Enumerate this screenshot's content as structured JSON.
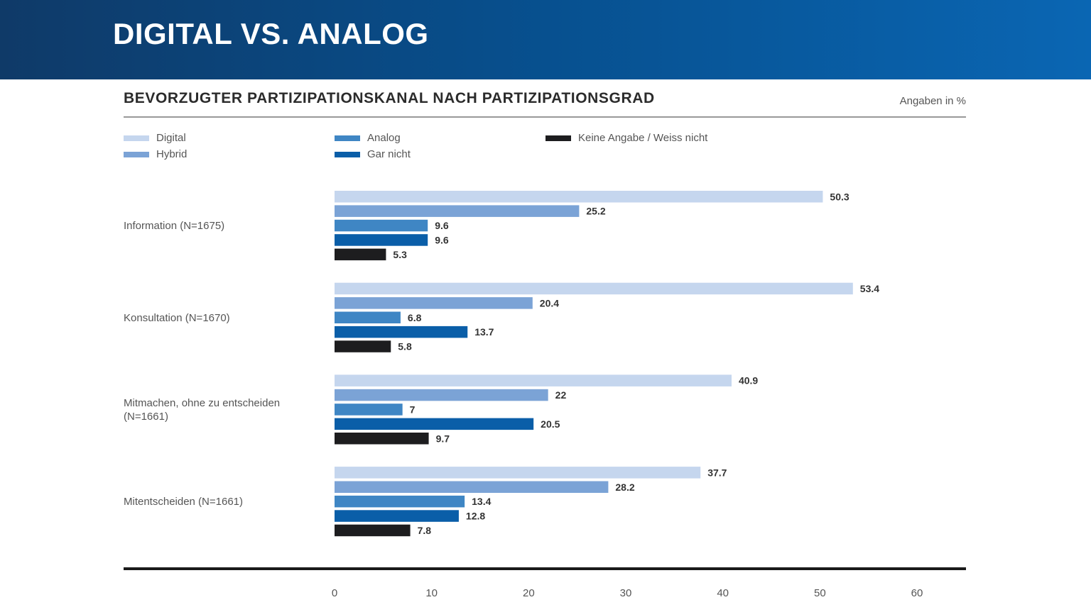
{
  "header": {
    "title": "DIGITAL VS. ANALOG"
  },
  "chart_data": {
    "type": "bar",
    "orientation": "horizontal",
    "title": "BEVORZUGTER PARTIZIPATIONSKANAL NACH PARTIZIPATIONSGRAD",
    "unit_note": "Angaben in %",
    "categories": [
      [
        "Information (N=1675)"
      ],
      [
        "Konsultation (N=1670)"
      ],
      [
        "Mitmachen, ohne zu entscheiden",
        "(N=1661)"
      ],
      [
        "Mitentscheiden (N=1661)"
      ]
    ],
    "series": [
      {
        "name": "Digital",
        "color": "#c5d6ee",
        "values": [
          50.3,
          53.4,
          40.9,
          37.7
        ],
        "labels": [
          "50.3",
          "53.4",
          "40.9",
          "37.7"
        ]
      },
      {
        "name": "Hybrid",
        "color": "#7ba3d6",
        "values": [
          25.2,
          20.4,
          22,
          28.2
        ],
        "labels": [
          "25.2",
          "20.4",
          "22",
          "28.2"
        ]
      },
      {
        "name": "Analog",
        "color": "#3f86c4",
        "values": [
          9.6,
          6.8,
          7,
          13.4
        ],
        "labels": [
          "9.6",
          "6.8",
          "7",
          "13.4"
        ]
      },
      {
        "name": "Gar nicht",
        "color": "#0a5ea8",
        "values": [
          9.6,
          13.7,
          20.5,
          12.8
        ],
        "labels": [
          "9.6",
          "13.7",
          "20.5",
          "12.8"
        ]
      },
      {
        "name": "Keine Angabe / Weiss nicht",
        "color": "#1d1d1f",
        "values": [
          5.3,
          5.8,
          9.7,
          7.8
        ],
        "labels": [
          "5.3",
          "5.8",
          "9.7",
          "7.8"
        ]
      }
    ],
    "xlim": [
      0,
      60
    ],
    "xticks": [
      0,
      10,
      20,
      30,
      40,
      50,
      60
    ],
    "legend_position": "top"
  }
}
